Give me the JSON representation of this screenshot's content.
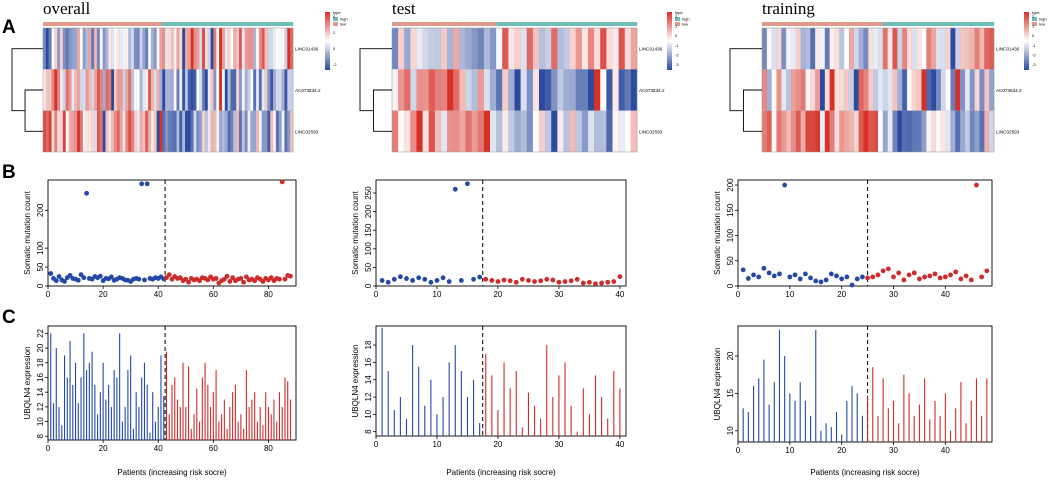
{
  "figure": {
    "panel_labels": [
      "A",
      "B",
      "C"
    ],
    "column_titles": [
      "overall",
      "test",
      "training"
    ]
  },
  "colors": {
    "high": "#cf2b2b",
    "low": "#2348a8",
    "type_bar": "#6fbdb8",
    "risk_bar": "#e09a8c",
    "heat_high": "#d73027",
    "heat_mid": "#ffffff",
    "heat_low": "#2c4a9e"
  },
  "heatmap_legend": {
    "type_title": "type",
    "type_items": [
      "high",
      "low"
    ],
    "overall_scale_ticks": [
      "4",
      "2",
      "0",
      "-2"
    ],
    "split_scale_ticks": [
      "2",
      "1",
      "0",
      "-1",
      "-2",
      "-3"
    ]
  },
  "chart_data": [
    {
      "id": "A-overall",
      "type": "heatmap",
      "title": "overall",
      "rows": [
        "LINC01436",
        "AC073534.2",
        "LINC02593"
      ],
      "n_patients": 88,
      "n_low": 42,
      "note": "heatmap cell values not printed; colour scale only"
    },
    {
      "id": "A-test",
      "type": "heatmap",
      "title": "test",
      "rows": [
        "LINC01436",
        "AC073534.2",
        "LINC02593"
      ],
      "n_patients": 40,
      "n_low": 17
    },
    {
      "id": "A-training",
      "type": "heatmap",
      "title": "training",
      "rows": [
        "LINC01436",
        "AC073534.2",
        "LINC02593"
      ],
      "n_patients": 48,
      "n_low": 25
    },
    {
      "id": "B-overall",
      "type": "scatter",
      "ylabel": "Somatic mutation count",
      "xlim": [
        0,
        90
      ],
      "ylim": [
        0,
        280
      ],
      "split_x": 42.5,
      "xticks": [
        0,
        20,
        40,
        60,
        80
      ],
      "yticks": [
        0,
        50,
        100,
        200
      ],
      "values": [
        33,
        20,
        14,
        25,
        16,
        12,
        22,
        28,
        20,
        18,
        15,
        30,
        22,
        245,
        20,
        18,
        25,
        22,
        26,
        14,
        20,
        19,
        24,
        15,
        18,
        22,
        20,
        16,
        15,
        12,
        18,
        20,
        18,
        270,
        16,
        270,
        20,
        18,
        22,
        20,
        24,
        19,
        22,
        30,
        18,
        25,
        20,
        22,
        14,
        18,
        10,
        20,
        16,
        18,
        14,
        22,
        20,
        16,
        24,
        18,
        20,
        8,
        14,
        18,
        26,
        12,
        22,
        14,
        18,
        20,
        10,
        24,
        16,
        18,
        14,
        22,
        18,
        12,
        20,
        16,
        22,
        14,
        20,
        18,
        275,
        18,
        28,
        26
      ]
    },
    {
      "id": "B-test",
      "type": "scatter",
      "ylabel": "Somatic mutation count",
      "xlim": [
        0,
        41
      ],
      "ylim": [
        0,
        285
      ],
      "split_x": 17.5,
      "xticks": [
        0,
        10,
        20,
        30,
        40
      ],
      "yticks": [
        0,
        50,
        100,
        150,
        200,
        250
      ],
      "values": [
        15,
        10,
        18,
        25,
        20,
        15,
        22,
        18,
        10,
        15,
        22,
        12,
        260,
        15,
        275,
        18,
        24,
        18,
        15,
        12,
        16,
        14,
        10,
        18,
        15,
        12,
        14,
        18,
        16,
        10,
        12,
        14,
        18,
        8,
        10,
        6,
        8,
        10,
        12,
        25
      ]
    },
    {
      "id": "B-training",
      "type": "scatter",
      "ylabel": "Somatic mutation count",
      "xlim": [
        0,
        49
      ],
      "ylim": [
        0,
        210
      ],
      "split_x": 25,
      "xticks": [
        0,
        10,
        20,
        30,
        40
      ],
      "yticks": [
        0,
        50,
        100,
        150,
        200
      ],
      "values": [
        32,
        15,
        22,
        18,
        35,
        26,
        20,
        24,
        200,
        18,
        22,
        14,
        24,
        16,
        10,
        8,
        12,
        24,
        20,
        14,
        18,
        2,
        14,
        18,
        16,
        18,
        22,
        30,
        34,
        18,
        26,
        12,
        22,
        26,
        14,
        18,
        20,
        24,
        16,
        18,
        22,
        28,
        14,
        20,
        12,
        200,
        18,
        30
      ]
    },
    {
      "id": "C-overall",
      "type": "bar",
      "ylabel": "UBQLN4 expression",
      "xlim": [
        0,
        90
      ],
      "ylim": [
        7.5,
        23
      ],
      "split_x": 42.5,
      "xticks": [
        0,
        20,
        40,
        60,
        80
      ],
      "yticks": [
        8,
        10,
        12,
        14,
        16,
        18,
        20,
        22
      ],
      "values": [
        22,
        12.5,
        20,
        12,
        9.5,
        19,
        16,
        21,
        15,
        18,
        12.5,
        16,
        22,
        17,
        18,
        19.5,
        15,
        11,
        14,
        18,
        13,
        15,
        12,
        17,
        16,
        22,
        10,
        12,
        17,
        19,
        9,
        14,
        12,
        16,
        18,
        15,
        8.5,
        14,
        10,
        12,
        19,
        13.5,
        19.5,
        11,
        15,
        16,
        13,
        12,
        18,
        12,
        17.5,
        9,
        11,
        14.5,
        10,
        16,
        18,
        15,
        12,
        14,
        17,
        10,
        11,
        13,
        9,
        12,
        14,
        15,
        10,
        11,
        9,
        17,
        12,
        13,
        14,
        10,
        12,
        9.5,
        14,
        12,
        11,
        13,
        10,
        14,
        12,
        16,
        15.5,
        13
      ]
    },
    {
      "id": "C-test",
      "type": "bar",
      "ylabel": "UBQLN4 expression",
      "xlim": [
        0,
        41
      ],
      "ylim": [
        7.5,
        20.2
      ],
      "split_x": 17.5,
      "xticks": [
        0,
        10,
        20,
        30,
        40
      ],
      "yticks": [
        8,
        10,
        12,
        14,
        16,
        18
      ],
      "values": [
        20,
        15,
        10.5,
        12,
        9.5,
        18,
        15.5,
        11,
        14,
        10,
        12,
        16,
        18,
        15,
        12,
        14,
        9,
        17,
        14.5,
        10.5,
        16,
        13,
        15,
        8.5,
        12.5,
        11,
        9.5,
        18,
        12,
        14.5,
        16,
        11,
        8,
        13,
        10,
        14.5,
        12,
        9.5,
        15,
        13
      ]
    },
    {
      "id": "C-training",
      "type": "bar",
      "ylabel": "UBQLN4 expression",
      "xlim": [
        0,
        49
      ],
      "ylim": [
        8.5,
        24
      ],
      "split_x": 25,
      "xticks": [
        0,
        10,
        20,
        30,
        40
      ],
      "yticks": [
        10,
        15,
        20
      ],
      "values": [
        13,
        12.5,
        16,
        17,
        19.5,
        13.5,
        16.5,
        23.5,
        20,
        15,
        14,
        16.5,
        14,
        12,
        23.5,
        10,
        11,
        10.5,
        12.5,
        9.5,
        14,
        16,
        15,
        12,
        14.5,
        18.5,
        12,
        17,
        13,
        14,
        11,
        17.5,
        15,
        12,
        13.5,
        17,
        11.5,
        14,
        12,
        15,
        10,
        13,
        16.5,
        11,
        14,
        17,
        12,
        17
      ]
    }
  ]
}
